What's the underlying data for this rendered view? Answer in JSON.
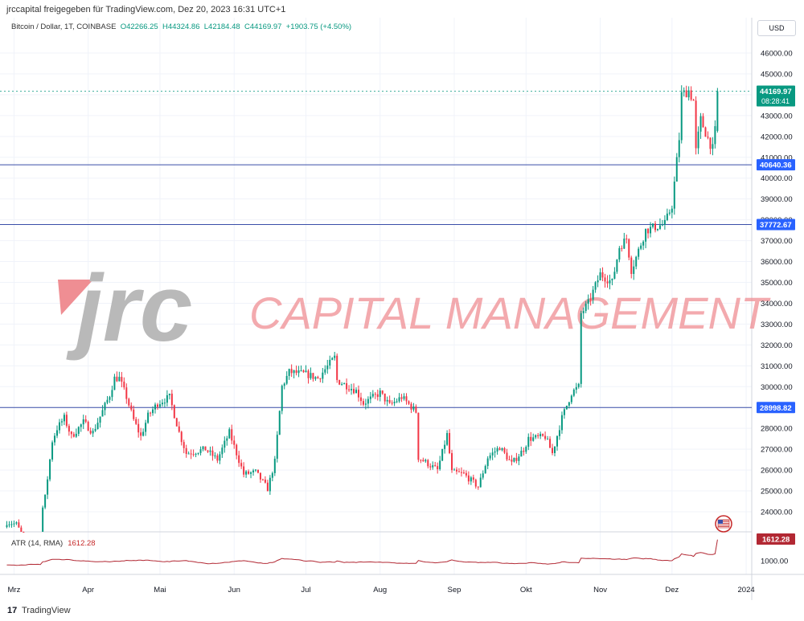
{
  "header": {
    "share_text": "jrccapital freigegeben für TradingView.com, Dez 20, 2023 16:31 UTC+1"
  },
  "legend": {
    "symbol": "Bitcoin / Dollar, 1T, COINBASE",
    "open": "O42266.25",
    "high": "H44324.86",
    "low": "L42184.48",
    "close": "C44169.97",
    "change": "+1903.75 (+4.50%)"
  },
  "currency_button": "USD",
  "watermark": {
    "logo_text": "jrc",
    "tagline": "CAPITAL MANAGEMENT"
  },
  "atr": {
    "label": "ATR (14, RMA)",
    "value": "1612.28",
    "value_tag": "1612.28",
    "scale_label": "1000.00"
  },
  "price_tags": {
    "last": "44169.97",
    "countdown": "08:28:41",
    "level_1": "40640.36",
    "level_2": "37772.67",
    "level_3": "28998.82"
  },
  "footer": {
    "brand": "TradingView",
    "logo_glyph": "17"
  },
  "colors": {
    "up": "#089981",
    "down": "#f23645",
    "level_line": "#3a4ea8",
    "level_tag": "#2962ff",
    "atr_tag": "#b22833",
    "watermark_grey": "#b9b9b9",
    "watermark_pink": "#ef8e93"
  },
  "chart_data": {
    "type": "candlestick",
    "title": "Bitcoin / Dollar, 1T, COINBASE",
    "interval": "1 day",
    "x_tick_labels": [
      "Mrz",
      "Apr",
      "Mai",
      "Jun",
      "Jul",
      "Aug",
      "Sep",
      "Okt",
      "Nov",
      "Dez",
      "2024"
    ],
    "y_tick_labels": [
      24000,
      25000,
      26000,
      27000,
      28000,
      29000,
      30000,
      31000,
      32000,
      33000,
      34000,
      35000,
      36000,
      37000,
      38000,
      39000,
      40000,
      41000,
      42000,
      43000,
      44000,
      45000,
      46000
    ],
    "ylim": [
      22900,
      46600
    ],
    "grid": true,
    "horizontal_levels": [
      40640.36,
      37772.67,
      28998.82
    ],
    "last_close": 44169.97,
    "close_anchors": [
      {
        "date": "2023-02-26",
        "close": 23500
      },
      {
        "date": "2023-03-02",
        "close": 23400
      },
      {
        "date": "2023-03-09",
        "close": 21900
      },
      {
        "date": "2023-03-12",
        "close": 22200
      },
      {
        "date": "2023-03-13",
        "close": 24200
      },
      {
        "date": "2023-03-14",
        "close": 24700
      },
      {
        "date": "2023-03-17",
        "close": 27400
      },
      {
        "date": "2023-03-19",
        "close": 28000
      },
      {
        "date": "2023-03-22",
        "close": 28500
      },
      {
        "date": "2023-03-25",
        "close": 27600
      },
      {
        "date": "2023-03-30",
        "close": 28300
      },
      {
        "date": "2023-04-03",
        "close": 27800
      },
      {
        "date": "2023-04-10",
        "close": 29600
      },
      {
        "date": "2023-04-12",
        "close": 30400
      },
      {
        "date": "2023-04-14",
        "close": 30400
      },
      {
        "date": "2023-04-17",
        "close": 29500
      },
      {
        "date": "2023-04-20",
        "close": 28400
      },
      {
        "date": "2023-04-23",
        "close": 27600
      },
      {
        "date": "2023-04-26",
        "close": 28600
      },
      {
        "date": "2023-04-30",
        "close": 29200
      },
      {
        "date": "2023-05-05",
        "close": 29500
      },
      {
        "date": "2023-05-09",
        "close": 27800
      },
      {
        "date": "2023-05-12",
        "close": 26800
      },
      {
        "date": "2023-05-20",
        "close": 27000
      },
      {
        "date": "2023-05-25",
        "close": 26500
      },
      {
        "date": "2023-05-30",
        "close": 27800
      },
      {
        "date": "2023-06-05",
        "close": 25800
      },
      {
        "date": "2023-06-10",
        "close": 25900
      },
      {
        "date": "2023-06-15",
        "close": 25100
      },
      {
        "date": "2023-06-18",
        "close": 26400
      },
      {
        "date": "2023-06-21",
        "close": 30000
      },
      {
        "date": "2023-06-24",
        "close": 30700
      },
      {
        "date": "2023-07-01",
        "close": 30600
      },
      {
        "date": "2023-07-06",
        "close": 30400
      },
      {
        "date": "2023-07-13",
        "close": 31400
      },
      {
        "date": "2023-07-14",
        "close": 30300
      },
      {
        "date": "2023-07-22",
        "close": 29800
      },
      {
        "date": "2023-07-25",
        "close": 29200
      },
      {
        "date": "2023-08-01",
        "close": 29700
      },
      {
        "date": "2023-08-05",
        "close": 29100
      },
      {
        "date": "2023-08-10",
        "close": 29500
      },
      {
        "date": "2023-08-16",
        "close": 28800
      },
      {
        "date": "2023-08-17",
        "close": 26600
      },
      {
        "date": "2023-08-25",
        "close": 26000
      },
      {
        "date": "2023-08-29",
        "close": 27700
      },
      {
        "date": "2023-08-31",
        "close": 25900
      },
      {
        "date": "2023-09-05",
        "close": 25800
      },
      {
        "date": "2023-09-11",
        "close": 25200
      },
      {
        "date": "2023-09-15",
        "close": 26600
      },
      {
        "date": "2023-09-20",
        "close": 27100
      },
      {
        "date": "2023-09-25",
        "close": 26300
      },
      {
        "date": "2023-09-30",
        "close": 27000
      },
      {
        "date": "2023-10-02",
        "close": 27500
      },
      {
        "date": "2023-10-09",
        "close": 27600
      },
      {
        "date": "2023-10-12",
        "close": 26800
      },
      {
        "date": "2023-10-16",
        "close": 28500
      },
      {
        "date": "2023-10-20",
        "close": 29700
      },
      {
        "date": "2023-10-23",
        "close": 30000
      },
      {
        "date": "2023-10-24",
        "close": 33500
      },
      {
        "date": "2023-10-27",
        "close": 34000
      },
      {
        "date": "2023-11-01",
        "close": 35400
      },
      {
        "date": "2023-11-06",
        "close": 35000
      },
      {
        "date": "2023-11-09",
        "close": 36700
      },
      {
        "date": "2023-11-12",
        "close": 37100
      },
      {
        "date": "2023-11-14",
        "close": 35600
      },
      {
        "date": "2023-11-16",
        "close": 36200
      },
      {
        "date": "2023-11-20",
        "close": 37500
      },
      {
        "date": "2023-11-25",
        "close": 37700
      },
      {
        "date": "2023-11-28",
        "close": 37800
      },
      {
        "date": "2023-12-01",
        "close": 38700
      },
      {
        "date": "2023-12-04",
        "close": 41900
      },
      {
        "date": "2023-12-05",
        "close": 44000
      },
      {
        "date": "2023-12-08",
        "close": 44200
      },
      {
        "date": "2023-12-10",
        "close": 43700
      },
      {
        "date": "2023-12-11",
        "close": 41300
      },
      {
        "date": "2023-12-13",
        "close": 42800
      },
      {
        "date": "2023-12-16",
        "close": 41900
      },
      {
        "date": "2023-12-18",
        "close": 41400
      },
      {
        "date": "2023-12-19",
        "close": 42266.25
      },
      {
        "date": "2023-12-20",
        "close": 44169.97
      }
    ],
    "atr_panel": {
      "label": "ATR (14, RMA)",
      "last_value": 1612.28,
      "ylim": [
        0,
        1800
      ]
    }
  }
}
